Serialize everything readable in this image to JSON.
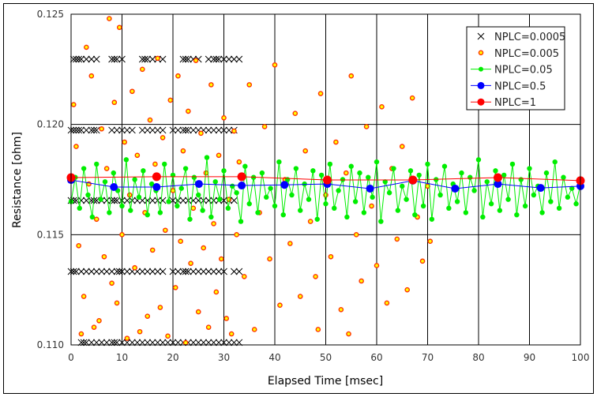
{
  "chart_data": {
    "type": "scatter",
    "title": "",
    "xlabel": "Elapsed Time [msec]",
    "ylabel": "Resistance [ohm]",
    "xlim": [
      0,
      100
    ],
    "ylim": [
      0.11,
      0.125
    ],
    "xticks": [
      0,
      10,
      20,
      30,
      40,
      50,
      60,
      70,
      80,
      90,
      100
    ],
    "yticks": [
      "0.110",
      "0.115",
      "0.120",
      "0.125"
    ],
    "ytick_values": [
      0.11,
      0.115,
      0.12,
      0.125
    ],
    "grid": true,
    "legend_position": "top-right",
    "series": [
      {
        "name": "NPLC=0.0005",
        "style": "x-marker",
        "color": "#000000",
        "levels": [
          {
            "y": 0.12296,
            "x": [
              0.5,
              1,
              1.5,
              2,
              3,
              4,
              5,
              8,
              8.5,
              9,
              10,
              14,
              14.5,
              15,
              16,
              17,
              18,
              22,
              22.5,
              23,
              24,
              25,
              27,
              28,
              28.5,
              29,
              30,
              31,
              32,
              33
            ]
          },
          {
            "y": 0.11974,
            "x": [
              0,
              0.5,
              1,
              1.5,
              2,
              3,
              4,
              4.5,
              5,
              8,
              9,
              10,
              11,
              12,
              14,
              15,
              16,
              17,
              18,
              20,
              21,
              22,
              22.5,
              23,
              24,
              25,
              26,
              27,
              28,
              29,
              30,
              31,
              32
            ]
          },
          {
            "y": 0.11655,
            "x": [
              0,
              0.5,
              1,
              2,
              3,
              4,
              4.5,
              5,
              6,
              7,
              8,
              8.5,
              9,
              10,
              11,
              12,
              13,
              14,
              15,
              16,
              17,
              18,
              20,
              21,
              22,
              23,
              24,
              25,
              26,
              27,
              28,
              29,
              30,
              31,
              32
            ]
          },
          {
            "y": 0.11333,
            "x": [
              0,
              0.5,
              1,
              2,
              3,
              4,
              5,
              6,
              7,
              8,
              9,
              9.5,
              10,
              11,
              12,
              13,
              14,
              15,
              16,
              17,
              18,
              20,
              21,
              22,
              22.5,
              23,
              24,
              25,
              26,
              27,
              28,
              29,
              30,
              32,
              33
            ]
          },
          {
            "y": 0.11011,
            "x": [
              2,
              2.5,
              3,
              4,
              5,
              6,
              7,
              8,
              8.5,
              9,
              10,
              11,
              12,
              13,
              14,
              15,
              16,
              17,
              18,
              19,
              20,
              21,
              22,
              23,
              24,
              25,
              26,
              27,
              28,
              29,
              30,
              31,
              32,
              33
            ]
          }
        ]
      },
      {
        "name": "NPLC=0.005",
        "style": "orange-dot",
        "color": "#ffff00",
        "edge": "#ff3300",
        "points": [
          [
            0.5,
            0.1209
          ],
          [
            1,
            0.119
          ],
          [
            1.5,
            0.1145
          ],
          [
            2,
            0.1105
          ],
          [
            2.5,
            0.1122
          ],
          [
            3,
            0.1235
          ],
          [
            3.5,
            0.1173
          ],
          [
            4,
            0.1222
          ],
          [
            4.5,
            0.1108
          ],
          [
            5,
            0.1157
          ],
          [
            5.5,
            0.1111
          ],
          [
            6,
            0.1198
          ],
          [
            6.5,
            0.114
          ],
          [
            7,
            0.118
          ],
          [
            7.5,
            0.1248
          ],
          [
            8,
            0.1128
          ],
          [
            8.5,
            0.121
          ],
          [
            9,
            0.1119
          ],
          [
            9.5,
            0.1244
          ],
          [
            10,
            0.115
          ],
          [
            10.5,
            0.1192
          ],
          [
            11,
            0.1103
          ],
          [
            11.5,
            0.1168
          ],
          [
            12,
            0.1215
          ],
          [
            12.5,
            0.1135
          ],
          [
            13,
            0.1186
          ],
          [
            13.5,
            0.1106
          ],
          [
            14,
            0.1225
          ],
          [
            14.5,
            0.116
          ],
          [
            15,
            0.1113
          ],
          [
            15.5,
            0.1202
          ],
          [
            16,
            0.1143
          ],
          [
            16.5,
            0.1182
          ],
          [
            17,
            0.123
          ],
          [
            17.5,
            0.1117
          ],
          [
            18,
            0.1194
          ],
          [
            18.5,
            0.1152
          ],
          [
            19,
            0.1104
          ],
          [
            19.5,
            0.1211
          ],
          [
            20,
            0.117
          ],
          [
            20.5,
            0.1126
          ],
          [
            21,
            0.1222
          ],
          [
            21.5,
            0.1147
          ],
          [
            22,
            0.1188
          ],
          [
            22.5,
            0.1101
          ],
          [
            23,
            0.1206
          ],
          [
            23.5,
            0.1137
          ],
          [
            24,
            0.1162
          ],
          [
            24.5,
            0.1229
          ],
          [
            25,
            0.1115
          ],
          [
            25.5,
            0.1196
          ],
          [
            26,
            0.1144
          ],
          [
            26.5,
            0.1178
          ],
          [
            27,
            0.1108
          ],
          [
            27.5,
            0.1218
          ],
          [
            28,
            0.1155
          ],
          [
            28.5,
            0.1124
          ],
          [
            29,
            0.1186
          ],
          [
            29.5,
            0.1139
          ],
          [
            30,
            0.1203
          ],
          [
            30.5,
            0.1112
          ],
          [
            31,
            0.1166
          ],
          [
            31.5,
            0.1105
          ],
          [
            32,
            0.1197
          ],
          [
            32.5,
            0.115
          ],
          [
            33,
            0.1183
          ],
          [
            34,
            0.1131
          ],
          [
            35,
            0.1218
          ],
          [
            36,
            0.1107
          ],
          [
            37,
            0.116
          ],
          [
            38,
            0.1199
          ],
          [
            39,
            0.1139
          ],
          [
            40,
            0.1227
          ],
          [
            41,
            0.1118
          ],
          [
            42,
            0.1175
          ],
          [
            43,
            0.1146
          ],
          [
            44,
            0.1205
          ],
          [
            45,
            0.1122
          ],
          [
            46,
            0.1188
          ],
          [
            47,
            0.1156
          ],
          [
            48,
            0.1131
          ],
          [
            48.5,
            0.1107
          ],
          [
            49,
            0.1214
          ],
          [
            50,
            0.1168
          ],
          [
            51,
            0.114
          ],
          [
            52,
            0.1192
          ],
          [
            53,
            0.1116
          ],
          [
            54,
            0.1178
          ],
          [
            54.5,
            0.1105
          ],
          [
            55,
            0.1222
          ],
          [
            56,
            0.115
          ],
          [
            57,
            0.1129
          ],
          [
            58,
            0.1199
          ],
          [
            59,
            0.1163
          ],
          [
            60,
            0.1136
          ],
          [
            61,
            0.1208
          ],
          [
            62,
            0.1119
          ],
          [
            63,
            0.118
          ],
          [
            64,
            0.1148
          ],
          [
            65,
            0.119
          ],
          [
            66,
            0.1125
          ],
          [
            67,
            0.1212
          ],
          [
            68,
            0.1158
          ],
          [
            69,
            0.1138
          ],
          [
            70,
            0.1172
          ],
          [
            70.5,
            0.1147
          ]
        ]
      },
      {
        "name": "NPLC=0.05",
        "style": "line-dot",
        "color": "#00ee00",
        "x_start": 0,
        "x_step": 0.8333,
        "values": [
          0.1165,
          0.1176,
          0.1162,
          0.118,
          0.1168,
          0.1158,
          0.1182,
          0.1166,
          0.1174,
          0.116,
          0.1178,
          0.117,
          0.1163,
          0.1184,
          0.1161,
          0.1175,
          0.1167,
          0.1179,
          0.1159,
          0.1173,
          0.117,
          0.116,
          0.1182,
          0.1165,
          0.1177,
          0.1163,
          0.1171,
          0.118,
          0.1157,
          0.1176,
          0.1168,
          0.1161,
          0.1185,
          0.1158,
          0.1174,
          0.1166,
          0.1179,
          0.1162,
          0.1172,
          0.1169,
          0.1156,
          0.1181,
          0.1164,
          0.1176,
          0.116,
          0.1178,
          0.1167,
          0.1171,
          0.1163,
          0.1183,
          0.1159,
          0.1175,
          0.1168,
          0.118,
          0.1161,
          0.1173,
          0.1166,
          0.1179,
          0.1157,
          0.1177,
          0.1164,
          0.1182,
          0.1162,
          0.117,
          0.1175,
          0.1158,
          0.1181,
          0.1165,
          0.1178,
          0.116,
          0.1176,
          0.1167,
          0.1183,
          0.1156,
          0.1174,
          0.1169,
          0.118,
          0.1161,
          0.1172,
          0.1166,
          0.1179,
          0.1159,
          0.1177,
          0.1163,
          0.1182,
          0.1157,
          0.1175,
          0.1168,
          0.1181,
          0.1162,
          0.1173,
          0.1165,
          0.1178,
          0.116,
          0.1176,
          0.117,
          0.1184,
          0.1158,
          0.1174,
          0.1164,
          0.1179,
          0.1161,
          0.1177,
          0.1166,
          0.1182,
          0.1159,
          0.1175,
          0.1163,
          0.118,
          0.1168,
          0.1172,
          0.116,
          0.1178,
          0.1165,
          0.1183,
          0.1162,
          0.1176,
          0.1167,
          0.1171,
          0.1164,
          0.1173
        ]
      },
      {
        "name": "NPLC=0.5",
        "style": "line-dot",
        "color": "#0000ff",
        "points": [
          [
            0,
            0.11748
          ],
          [
            8.4,
            0.11716
          ],
          [
            16.8,
            0.11716
          ],
          [
            25.1,
            0.1173
          ],
          [
            33.5,
            0.11723
          ],
          [
            41.9,
            0.11726
          ],
          [
            50.3,
            0.1173
          ],
          [
            58.7,
            0.11709
          ],
          [
            67.1,
            0.11745
          ],
          [
            75.4,
            0.11709
          ],
          [
            83.8,
            0.1173
          ],
          [
            92.2,
            0.11712
          ],
          [
            100,
            0.1172
          ]
        ]
      },
      {
        "name": "NPLC=1",
        "style": "line-dot",
        "color": "#ff0000",
        "points": [
          [
            0,
            0.11759
          ],
          [
            16.8,
            0.11763
          ],
          [
            33.5,
            0.11763
          ],
          [
            50.3,
            0.11748
          ],
          [
            67.1,
            0.11748
          ],
          [
            83.8,
            0.11759
          ],
          [
            100,
            0.11745
          ]
        ]
      }
    ]
  }
}
